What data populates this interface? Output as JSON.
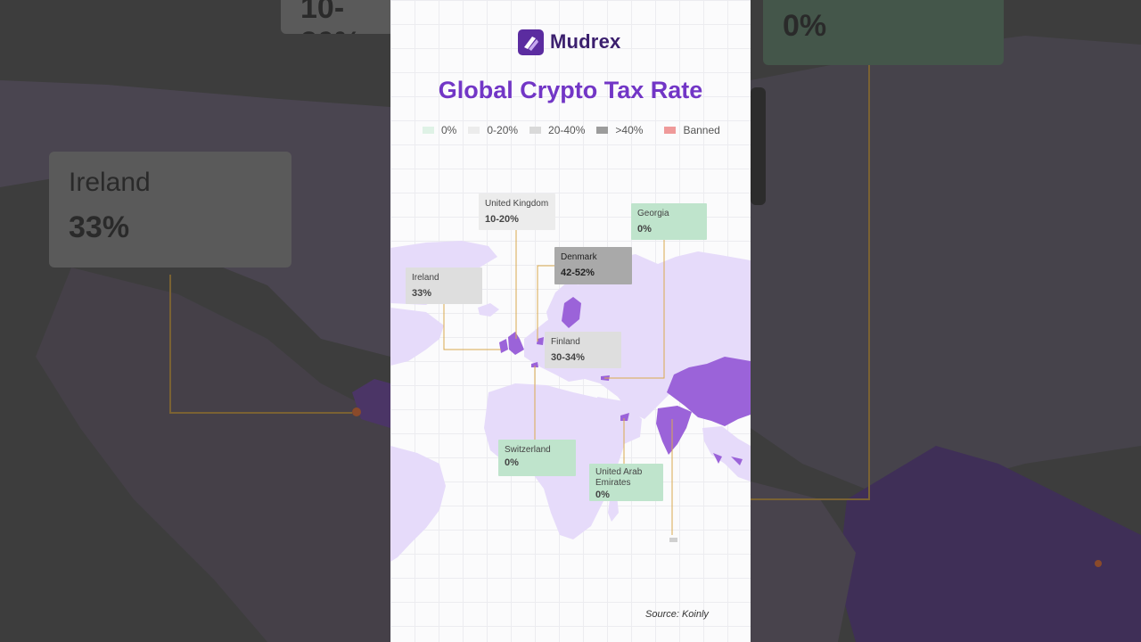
{
  "brand": {
    "name": "Mudrex"
  },
  "title": "Global Crypto Tax Rate",
  "legend": [
    {
      "label": "0%",
      "color": "#dff2e6"
    },
    {
      "label": "0-20%",
      "color": "#ececec"
    },
    {
      "label": "20-40%",
      "color": "#d9d9d9"
    },
    {
      "label": ">40%",
      "color": "#9c9c9c"
    },
    {
      "label": "Banned",
      "color": "#ef9a9a"
    }
  ],
  "countries": {
    "uk": {
      "name": "United Kingdom",
      "rate": "10-20%"
    },
    "georgia": {
      "name": "Georgia",
      "rate": "0%"
    },
    "denmark": {
      "name": "Denmark",
      "rate": "42-52%"
    },
    "ireland": {
      "name": "Ireland",
      "rate": "33%"
    },
    "finland": {
      "name": "Finland",
      "rate": "30-34%"
    },
    "switzerland": {
      "name": "Switzerland",
      "rate": "0%"
    },
    "uae": {
      "name": "United Arab Emirates",
      "rate": "0%"
    }
  },
  "source": "Source: Koinly",
  "colors": {
    "land": "#e6dbfa",
    "highlight": "#9b63d9",
    "leader": "#d9a84e",
    "accent": "#7236c6"
  }
}
